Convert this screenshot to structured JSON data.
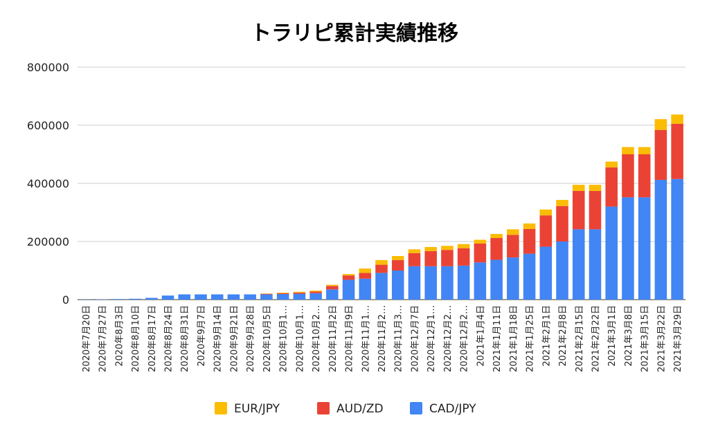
{
  "chart_data": {
    "type": "bar",
    "stacked": true,
    "title": "トラリピ累計実績推移",
    "xlabel": "",
    "ylabel": "",
    "ylim": [
      0,
      800000
    ],
    "yticks": [
      "0",
      "200000",
      "400000",
      "600000",
      "800000"
    ],
    "grid": true,
    "legend_position": "bottom",
    "categories": [
      "2020年7月20日",
      "2020年7月27日",
      "2020年8月3日",
      "2020年8月10日",
      "2020年8月17日",
      "2020年8月24日",
      "2020年8月31日",
      "2020年9月7日",
      "2020年9月14日",
      "2020年9月21日",
      "2020年9月28日",
      "2020年10月5日",
      "2020年10月1…",
      "2020年10月1…",
      "2020年10月2…",
      "2020年11月2日",
      "2020年11月9日",
      "2020年11月1…",
      "2020年11月2…",
      "2020年11月3…",
      "2020年12月7日",
      "2020年12月1…",
      "2020年12月2…",
      "2020年12月2…",
      "2021年1月4日",
      "2021年1月11日",
      "2021年1月18日",
      "2021年1月25日",
      "2021年2月1日",
      "2021年2月8日",
      "2021年2月15日",
      "2021年2月22日",
      "2021年3月1日",
      "2021年3月8日",
      "2021年3月15日",
      "2021年3月22日",
      "2021年3月29日"
    ],
    "series": [
      {
        "name": "CAD/JPY",
        "color": "#4285f4",
        "values": [
          500,
          1000,
          2000,
          3000,
          6000,
          14000,
          18000,
          18000,
          18000,
          18000,
          18000,
          18000,
          19000,
          20000,
          22000,
          35000,
          68000,
          72000,
          92000,
          100000,
          115000,
          115000,
          115000,
          117000,
          128000,
          137000,
          145000,
          158000,
          182000,
          200000,
          242000,
          242000,
          320000,
          352000,
          352000,
          412000,
          415000
        ]
      },
      {
        "name": "AUD/ZD",
        "color": "#ea4335",
        "values": [
          0,
          0,
          0,
          0,
          0,
          0,
          0,
          0,
          0,
          0,
          0,
          2000,
          3000,
          4000,
          6000,
          12000,
          15000,
          20000,
          28000,
          36000,
          45000,
          52000,
          56000,
          60000,
          65000,
          75000,
          78000,
          85000,
          108000,
          122000,
          132000,
          132000,
          135000,
          148000,
          148000,
          172000,
          190000
        ]
      },
      {
        "name": "EUR/JPY",
        "color": "#fbbc04",
        "values": [
          0,
          0,
          0,
          0,
          0,
          0,
          0,
          0,
          0,
          0,
          0,
          1000,
          2000,
          3000,
          3000,
          4000,
          5000,
          15000,
          16000,
          14000,
          13000,
          14000,
          14000,
          14000,
          13000,
          14000,
          19000,
          19000,
          20000,
          21000,
          21000,
          21000,
          20000,
          25000,
          25000,
          37000,
          32000
        ]
      }
    ],
    "legend": [
      "EUR/JPY",
      "AUD/ZD",
      "CAD/JPY"
    ]
  }
}
